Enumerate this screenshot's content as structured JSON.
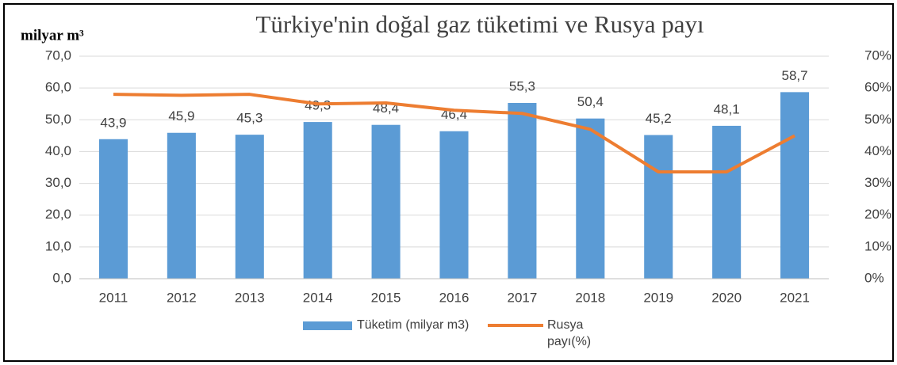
{
  "chart_data": {
    "type": "bar_line",
    "title": "Türkiye'nin doğal gaz tüketimi ve Rusya payı",
    "y_label": "milyar m³",
    "categories": [
      "2011",
      "2012",
      "2013",
      "2014",
      "2015",
      "2016",
      "2017",
      "2018",
      "2019",
      "2020",
      "2021"
    ],
    "series": [
      {
        "name": "Tüketim (milyar m3)",
        "type": "bar",
        "color": "#5b9bd5",
        "values": [
          43.9,
          45.9,
          45.3,
          49.3,
          48.4,
          46.4,
          55.3,
          50.4,
          45.2,
          48.1,
          58.7
        ],
        "value_labels": [
          "43,9",
          "45,9",
          "45,3",
          "49,3",
          "48,4",
          "46,4",
          "55,3",
          "50,4",
          "45,2",
          "48,1",
          "58,7"
        ]
      },
      {
        "name": "Rusya payı(%)",
        "type": "line",
        "color": "#ed7d31",
        "axis": "y2",
        "values": [
          58,
          57.7,
          58,
          55,
          55.3,
          53,
          52,
          47,
          33.6,
          33.6,
          45
        ]
      }
    ],
    "ylim": [
      0,
      70
    ],
    "yticks": [
      {
        "value": 0,
        "label": "0,0"
      },
      {
        "value": 10,
        "label": "10,0"
      },
      {
        "value": 20,
        "label": "20,0"
      },
      {
        "value": 30,
        "label": "30,0"
      },
      {
        "value": 40,
        "label": "40,0"
      },
      {
        "value": 50,
        "label": "50,0"
      },
      {
        "value": 60,
        "label": "60,0"
      },
      {
        "value": 70,
        "label": "70,0"
      }
    ],
    "y2lim": [
      0,
      70
    ],
    "y2ticks": [
      {
        "value": 0,
        "label": "0%"
      },
      {
        "value": 10,
        "label": "10%"
      },
      {
        "value": 20,
        "label": "20%"
      },
      {
        "value": 30,
        "label": "30%"
      },
      {
        "value": 40,
        "label": "40%"
      },
      {
        "value": 50,
        "label": "50%"
      },
      {
        "value": 60,
        "label": "60%"
      },
      {
        "value": 70,
        "label": "70%"
      }
    ],
    "grid": true
  }
}
